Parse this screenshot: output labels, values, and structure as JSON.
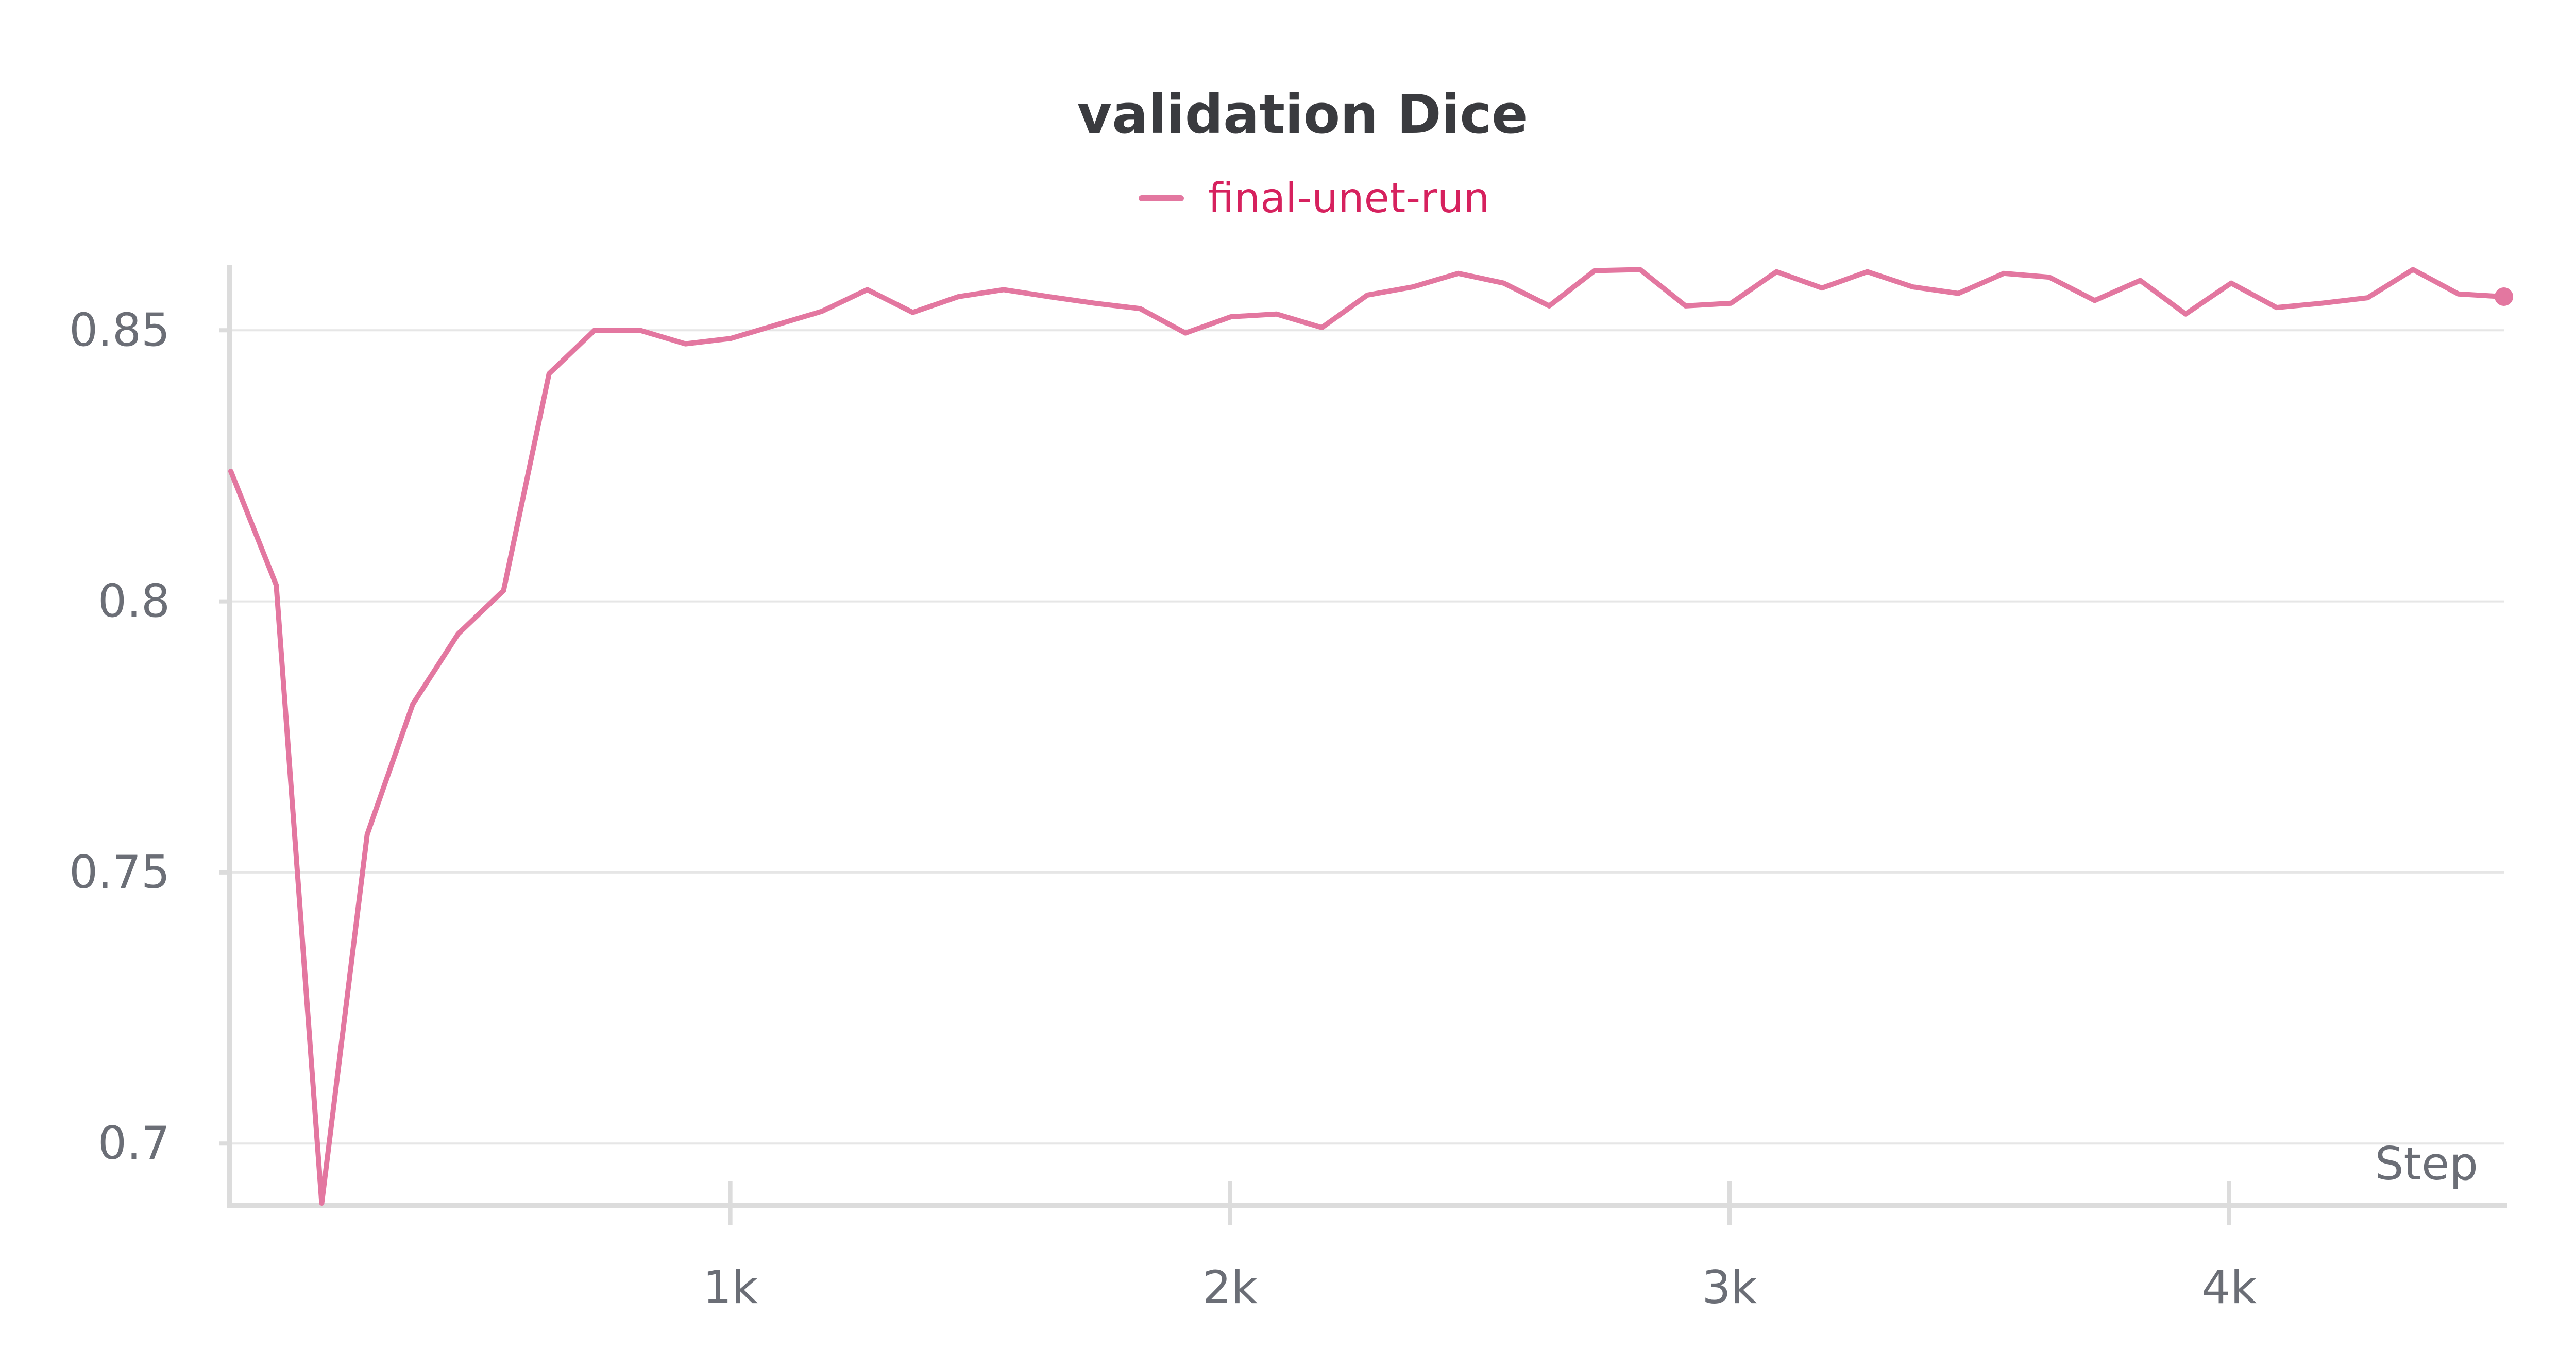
{
  "chart_data": {
    "type": "line",
    "title": "validation Dice",
    "xlabel": "Step",
    "ylabel": "",
    "xlim": [
      0,
      4550
    ],
    "ylim": [
      0.689,
      0.862
    ],
    "x_ticks": [
      1000,
      2000,
      3000,
      4000
    ],
    "x_tick_labels": [
      "1k",
      "2k",
      "3k",
      "4k"
    ],
    "y_ticks": [
      0.7,
      0.75,
      0.8,
      0.85
    ],
    "y_tick_labels": [
      "0.7",
      "0.75",
      "0.8",
      "0.85"
    ],
    "grid": "horizontal",
    "legend_position": "top-center",
    "series": [
      {
        "name": "final-unet-run",
        "color": "#e377a0",
        "end_marker": true,
        "x": [
          0,
          91,
          182,
          273,
          364,
          455,
          546,
          637,
          728,
          819,
          910,
          1001,
          1092,
          1183,
          1274,
          1365,
          1456,
          1547,
          1638,
          1729,
          1820,
          1911,
          2002,
          2093,
          2184,
          2275,
          2366,
          2457,
          2548,
          2639,
          2730,
          2821,
          2912,
          3003,
          3094,
          3185,
          3276,
          3367,
          3458,
          3549,
          3640,
          3731,
          3822,
          3913,
          4004,
          4095,
          4186,
          4277,
          4368,
          4459,
          4550
        ],
        "y": [
          0.824,
          0.803,
          0.689,
          0.757,
          0.781,
          0.794,
          0.802,
          0.842,
          0.85,
          0.85,
          0.8475,
          0.8485,
          0.851,
          0.8535,
          0.8575,
          0.8533,
          0.8562,
          0.8575,
          0.8562,
          0.855,
          0.854,
          0.8495,
          0.8525,
          0.853,
          0.8505,
          0.8565,
          0.858,
          0.8605,
          0.8587,
          0.8545,
          0.861,
          0.8612,
          0.8545,
          0.855,
          0.8608,
          0.8578,
          0.8608,
          0.858,
          0.8568,
          0.8605,
          0.8598,
          0.8555,
          0.8592,
          0.853,
          0.8587,
          0.8542,
          0.855,
          0.856,
          0.8612,
          0.8567,
          0.8562
        ]
      }
    ]
  }
}
